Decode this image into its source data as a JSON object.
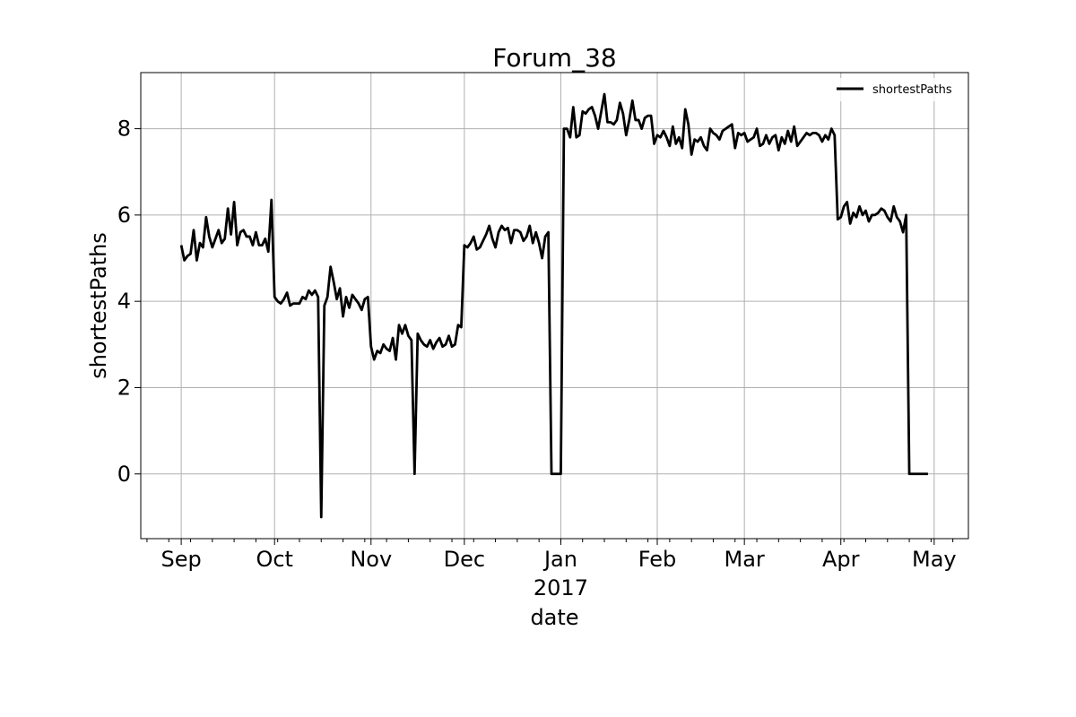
{
  "chart_data": {
    "type": "line",
    "title": "Forum_38",
    "xlabel": "date",
    "ylabel": "shortestPaths",
    "x_tick_labels": [
      "Sep",
      "Oct",
      "Nov",
      "Dec",
      "Jan",
      "Feb",
      "Mar",
      "Apr",
      "May"
    ],
    "x_tick_dates": [
      "2016-09-01",
      "2016-10-01",
      "2016-11-01",
      "2016-12-01",
      "2017-01-01",
      "2017-02-01",
      "2017-03-01",
      "2017-04-01",
      "2017-05-01"
    ],
    "x_year_label": "2017",
    "xlim": [
      "2016-08-19",
      "2017-05-12"
    ],
    "ylim": [
      -1.5,
      9.3
    ],
    "y_ticks": [
      0,
      2,
      4,
      6,
      8
    ],
    "y_tick_labels": [
      "0",
      "2",
      "4",
      "6",
      "8"
    ],
    "grid": true,
    "legend": {
      "location": "top-right",
      "entries": [
        "shortestPaths"
      ]
    },
    "series": [
      {
        "name": "shortestPaths",
        "color": "#000000",
        "start_date": "2016-09-01",
        "values": [
          5.3,
          4.95,
          5.05,
          5.1,
          5.65,
          4.95,
          5.35,
          5.25,
          5.95,
          5.5,
          5.25,
          5.45,
          5.65,
          5.35,
          5.45,
          6.15,
          5.55,
          6.3,
          5.3,
          5.6,
          5.65,
          5.5,
          5.5,
          5.3,
          5.6,
          5.3,
          5.3,
          5.45,
          5.15,
          6.35,
          4.1,
          4.0,
          3.95,
          4.05,
          4.2,
          3.9,
          3.95,
          3.95,
          3.95,
          4.1,
          4.05,
          4.25,
          4.15,
          4.25,
          4.1,
          -1.0,
          3.9,
          4.1,
          4.8,
          4.45,
          4.05,
          4.3,
          3.65,
          4.1,
          3.85,
          4.15,
          4.05,
          3.95,
          3.8,
          4.05,
          4.1,
          2.95,
          2.65,
          2.85,
          2.8,
          3.0,
          2.9,
          2.85,
          3.15,
          2.65,
          3.45,
          3.25,
          3.45,
          3.2,
          3.1,
          0.0,
          3.25,
          3.1,
          3.0,
          2.95,
          3.1,
          2.9,
          3.05,
          3.15,
          2.95,
          3.0,
          3.2,
          2.95,
          3.0,
          3.45,
          3.4,
          5.3,
          5.25,
          5.35,
          5.5,
          5.2,
          5.25,
          5.4,
          5.55,
          5.75,
          5.45,
          5.25,
          5.6,
          5.75,
          5.65,
          5.7,
          5.35,
          5.65,
          5.65,
          5.6,
          5.4,
          5.5,
          5.75,
          5.35,
          5.6,
          5.35,
          5.0,
          5.5,
          5.6,
          0.0,
          0.0,
          0.0,
          0.0,
          8.0,
          8.0,
          7.8,
          8.5,
          7.8,
          7.85,
          8.4,
          8.35,
          8.45,
          8.5,
          8.3,
          8.0,
          8.4,
          8.8,
          8.15,
          8.15,
          8.1,
          8.2,
          8.6,
          8.35,
          7.85,
          8.2,
          8.65,
          8.2,
          8.2,
          8.0,
          8.25,
          8.3,
          8.3,
          7.65,
          7.85,
          7.8,
          7.95,
          7.8,
          7.6,
          8.05,
          7.65,
          7.8,
          7.55,
          8.45,
          8.1,
          7.4,
          7.75,
          7.7,
          7.8,
          7.6,
          7.5,
          8.0,
          7.9,
          7.85,
          7.75,
          7.95,
          8.0,
          8.05,
          8.1,
          7.55,
          7.9,
          7.85,
          7.9,
          7.7,
          7.75,
          7.8,
          8.0,
          7.6,
          7.65,
          7.85,
          7.65,
          7.8,
          7.85,
          7.5,
          7.8,
          7.65,
          7.95,
          7.7,
          8.05,
          7.6,
          7.7,
          7.8,
          7.9,
          7.85,
          7.9,
          7.9,
          7.85,
          7.7,
          7.85,
          7.75,
          8.0,
          7.85,
          5.9,
          5.95,
          6.2,
          6.3,
          5.8,
          6.05,
          5.95,
          6.2,
          6.0,
          6.1,
          5.85,
          6.0,
          6.0,
          6.05,
          6.15,
          6.1,
          5.95,
          5.85,
          6.2,
          5.95,
          5.85,
          5.6,
          6.0,
          0.0,
          0.0,
          0.0,
          0.0,
          0.0,
          0.0,
          0.0
        ]
      }
    ]
  }
}
